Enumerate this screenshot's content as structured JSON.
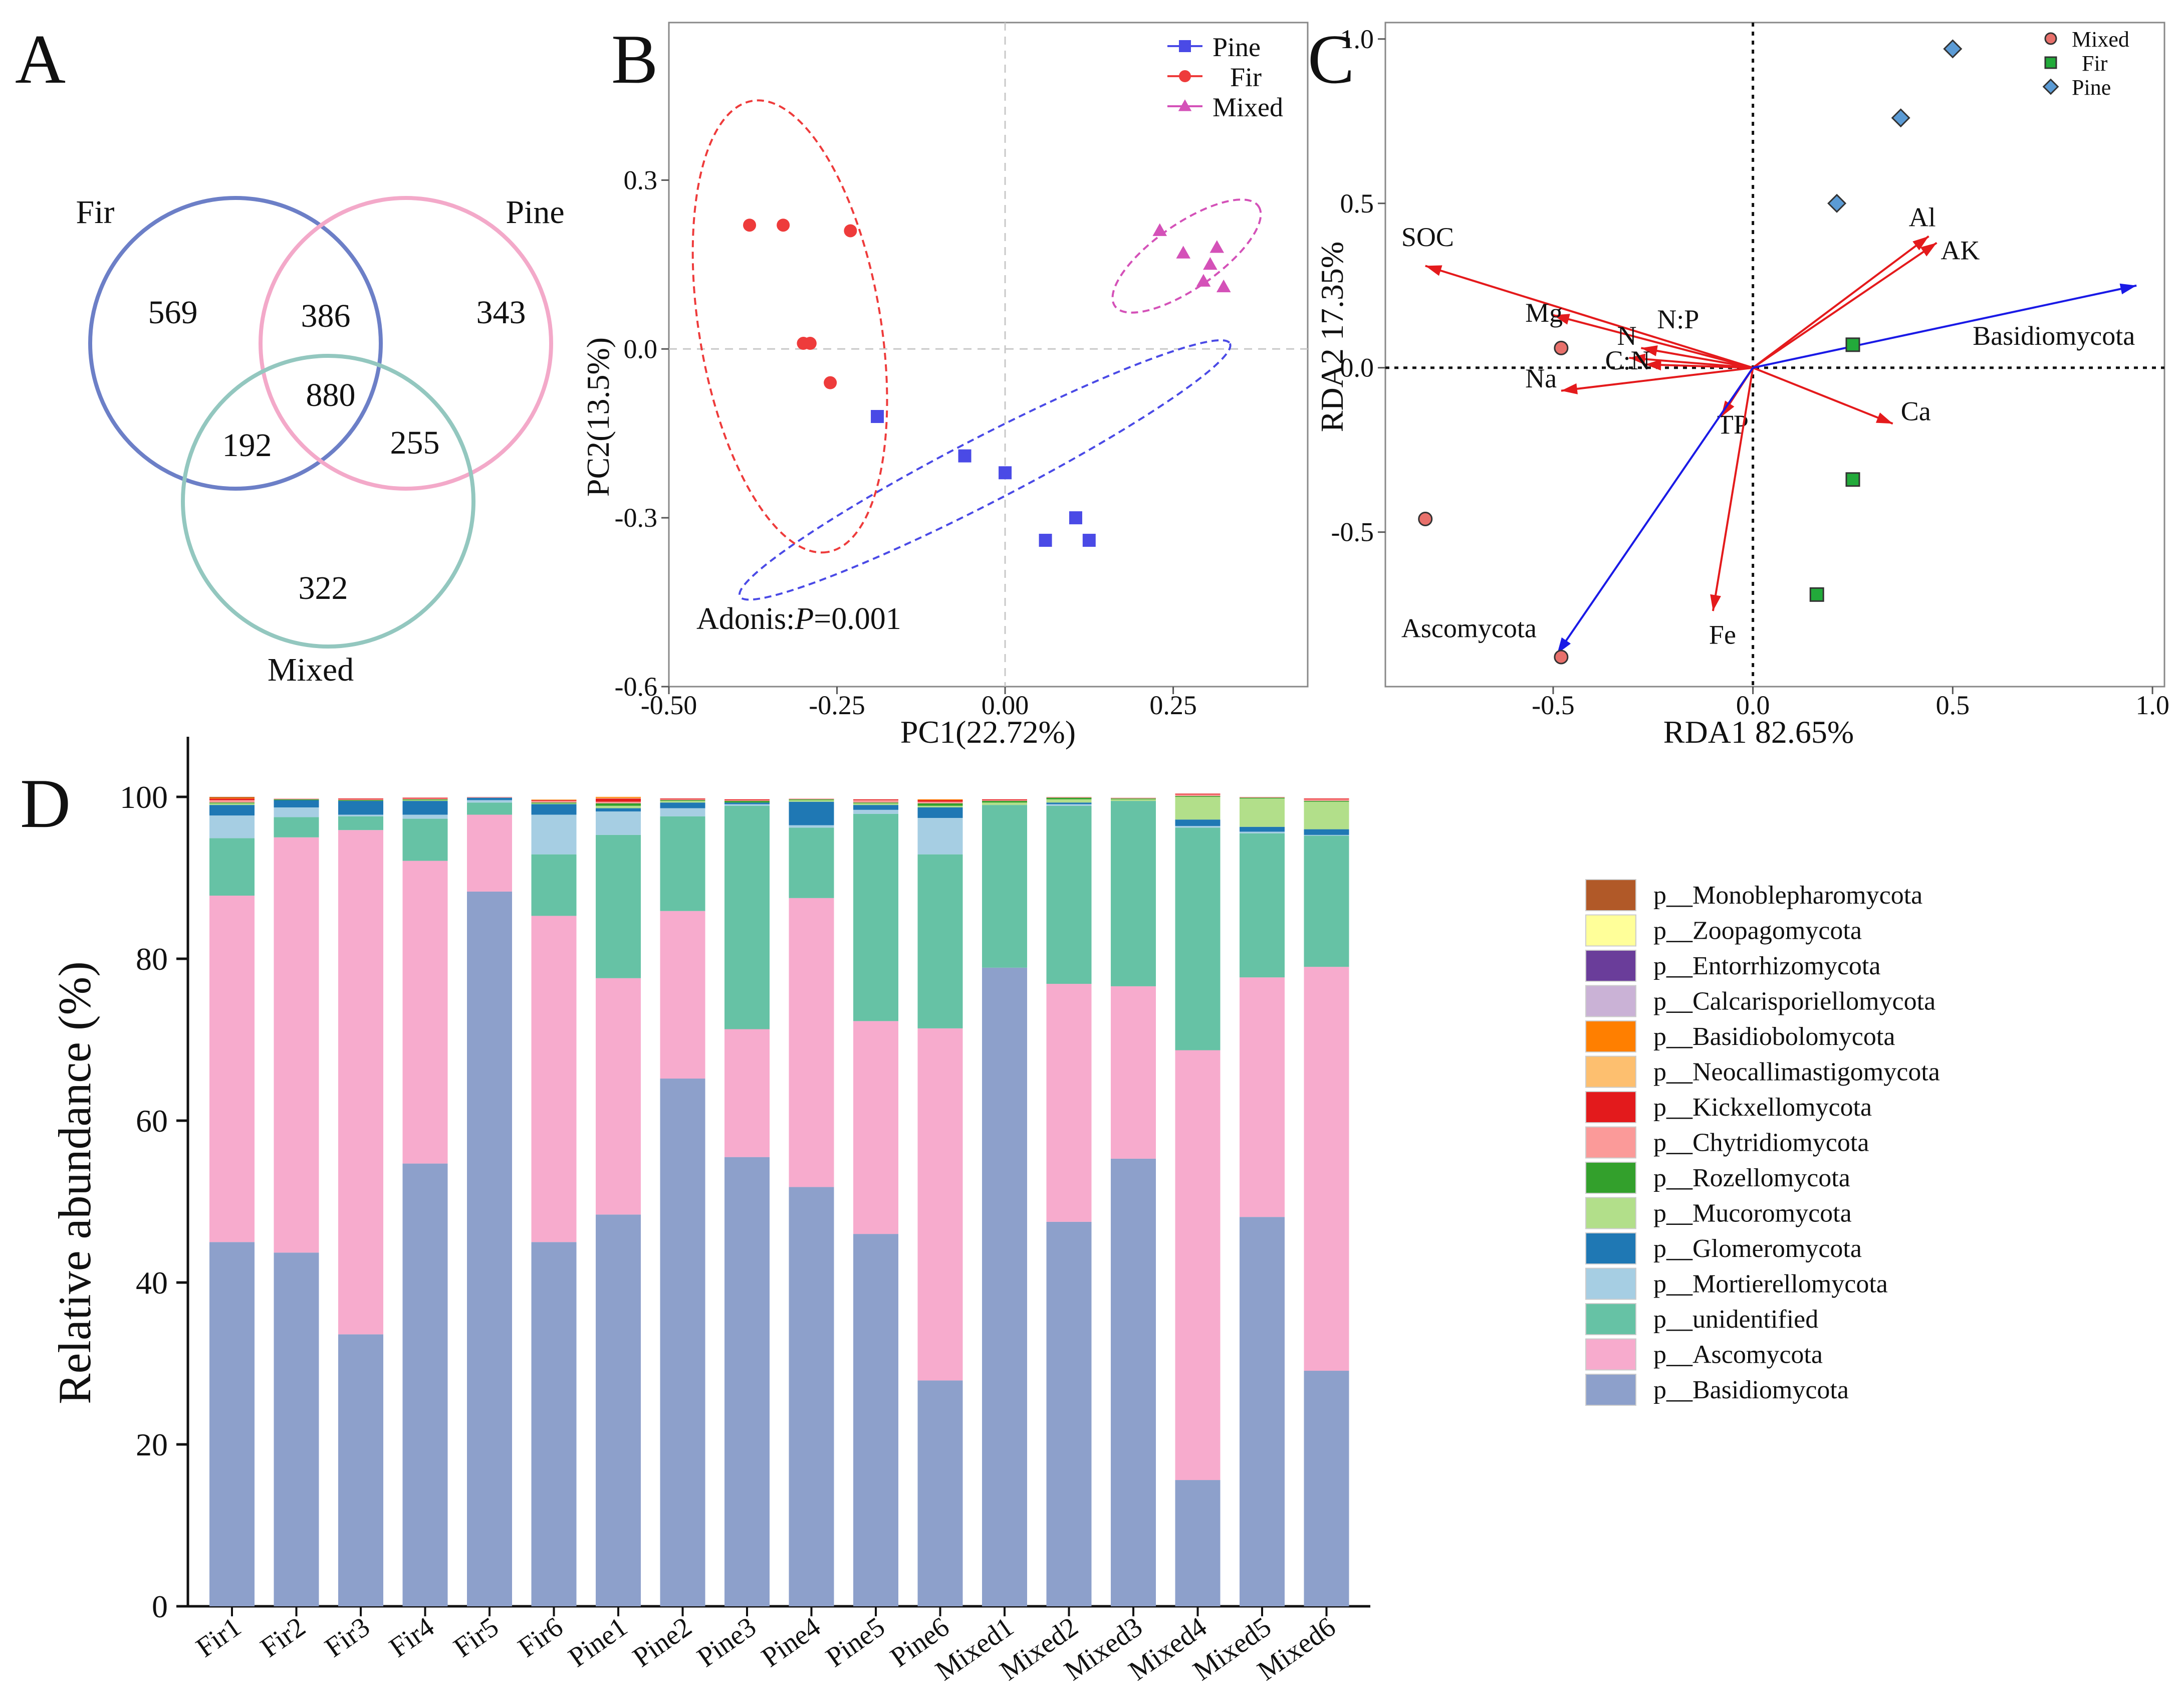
{
  "colors": {
    "fir_circle": "#6c7fc7",
    "pine_circle": "#f3a9c9",
    "mixed_circle": "#93c7bf",
    "pine_point": "#4a4ae6",
    "fir_point": "#ee3b3b",
    "mixed_point": "#d451b8",
    "env_arrow": "#e41a1c",
    "phylum_arrow": "#1a1ae6",
    "blue_label": "#5b9bd5",
    "highlight_label": "#e84a1d"
  },
  "panels": {
    "a": "A",
    "b": "B",
    "c": "C",
    "d": "D"
  },
  "venn": {
    "sets": [
      {
        "label": "Fir",
        "color": "#6c7fc7"
      },
      {
        "label": "Pine",
        "color": "#f3a9c9"
      },
      {
        "label": "Mixed",
        "color": "#93c7bf"
      }
    ],
    "counts": {
      "fir_only": "569",
      "fir_pine": "386",
      "pine_only": "343",
      "all_three": "880",
      "fir_mixed": "192",
      "pine_mixed": "255",
      "mixed_only": "322"
    }
  },
  "chart_data": [
    {
      "id": "B",
      "type": "scatter",
      "xlabel": "PC1(22.72%)",
      "ylabel": "PC2(13.5%)",
      "xlim": [
        -0.5,
        0.45
      ],
      "ylim": [
        -0.6,
        0.58
      ],
      "x_ticks": [
        -0.5,
        -0.25,
        0,
        0.25
      ],
      "x_tick_labels": [
        "-0.50",
        "-0.25",
        "0.00",
        "0.25"
      ],
      "y_ticks": [
        -0.6,
        -0.3,
        0,
        0.3
      ],
      "y_tick_labels": [
        "-0.6",
        "-0.3",
        "0.0",
        "0.3"
      ],
      "annotation": {
        "prefix": "Adonis:",
        "var": "P",
        "value": "=0.001"
      },
      "series": [
        {
          "name": "Pine",
          "marker": "square",
          "color": "#4a4ae6",
          "points": [
            [
              -0.19,
              -0.12
            ],
            [
              -0.06,
              -0.19
            ],
            [
              0,
              -0.22
            ],
            [
              0.06,
              -0.34
            ],
            [
              0.105,
              -0.3
            ],
            [
              0.125,
              -0.34
            ]
          ],
          "ellipse": {
            "cx": -0.03,
            "cy": -0.215,
            "rx": 0.41,
            "ry": 0.048,
            "angle_deg": 27.3
          }
        },
        {
          "name": "Fir",
          "marker": "circle",
          "color": "#ee3b3b",
          "points": [
            [
              -0.38,
              0.22
            ],
            [
              -0.33,
              0.22
            ],
            [
              -0.23,
              0.21
            ],
            [
              -0.3,
              0.01
            ],
            [
              -0.29,
              0.01
            ],
            [
              -0.26,
              -0.06
            ]
          ],
          "ellipse": {
            "cx": -0.32,
            "cy": 0.04,
            "rx": 0.34,
            "ry": 0.135,
            "angle_deg": -80.5
          }
        },
        {
          "name": "Mixed",
          "marker": "triangle",
          "color": "#d451b8",
          "points": [
            [
              0.23,
              0.21
            ],
            [
              0.265,
              0.17
            ],
            [
              0.295,
              0.12
            ],
            [
              0.305,
              0.15
            ],
            [
              0.315,
              0.18
            ],
            [
              0.325,
              0.11
            ]
          ],
          "ellipse": {
            "cx": 0.27,
            "cy": 0.165,
            "rx": 0.13,
            "ry": 0.048,
            "angle_deg": 34.8
          }
        }
      ]
    },
    {
      "id": "C",
      "type": "scatter",
      "xlabel": "RDA1 82.65%",
      "ylabel": "RDA2 17.35%",
      "xlim": [
        -0.92,
        1.03
      ],
      "ylim": [
        -0.97,
        1.05
      ],
      "x_ticks": [
        -0.5,
        0,
        0.5,
        1
      ],
      "x_tick_labels": [
        "-0.5",
        "0.0",
        "0.5",
        "1.0"
      ],
      "y_ticks": [
        -0.5,
        0,
        0.5,
        1
      ],
      "y_tick_labels": [
        "-0.5",
        "0.0",
        "0.5",
        "1.0"
      ],
      "series": [
        {
          "name": "Mixed",
          "marker": "circle",
          "color": "#e8706b",
          "points": [
            [
              -0.48,
              0.06
            ],
            [
              -0.82,
              -0.46
            ],
            [
              -0.48,
              -0.88
            ]
          ]
        },
        {
          "name": "Fir",
          "marker": "square",
          "color": "#22aa3a",
          "points": [
            [
              0.25,
              0.07
            ],
            [
              0.25,
              -0.34
            ],
            [
              0.16,
              -0.69
            ]
          ]
        },
        {
          "name": "Pine",
          "marker": "diamond",
          "color": "#5b9bd5",
          "points": [
            [
              0.5,
              0.97
            ],
            [
              0.37,
              0.76
            ],
            [
              0.21,
              0.5
            ]
          ]
        }
      ],
      "env_vectors": [
        {
          "label": "SOC",
          "x": -0.82,
          "y": 0.31,
          "color": "#e41a1c",
          "label_color": "#111111"
        },
        {
          "label": "Mg",
          "x": -0.5,
          "y": 0.16,
          "color": "#e41a1c",
          "label_color": "#111111"
        },
        {
          "label": "N",
          "x": -0.31,
          "y": 0.03,
          "color": "#e41a1c",
          "label_color": "#111111"
        },
        {
          "label": "N:P",
          "x": -0.28,
          "y": 0.06,
          "color": "#e41a1c",
          "label_color": "#5b9bd5"
        },
        {
          "label": "C:N",
          "x": -0.27,
          "y": 0.01,
          "color": "#e41a1c",
          "label_color": "#5b9bd5"
        },
        {
          "label": "Na",
          "x": -0.48,
          "y": -0.07,
          "color": "#e41a1c",
          "label_color": "#111111"
        },
        {
          "label": "Al",
          "x": 0.44,
          "y": 0.4,
          "color": "#e41a1c",
          "label_color": "#111111"
        },
        {
          "label": "AK",
          "x": 0.46,
          "y": 0.38,
          "color": "#e41a1c",
          "label_color": "#111111"
        },
        {
          "label": "Ca",
          "x": 0.35,
          "y": -0.17,
          "color": "#e41a1c",
          "label_color": "#111111"
        },
        {
          "label": "TP",
          "x": -0.08,
          "y": -0.15,
          "color": "#e41a1c",
          "label_color": "#5b9bd5"
        },
        {
          "label": "Fe",
          "x": -0.1,
          "y": -0.74,
          "color": "#e41a1c",
          "label_color": "#5b9bd5"
        }
      ],
      "phylum_vectors": [
        {
          "label": "Basidiomycota",
          "x": 0.96,
          "y": 0.25,
          "color": "#1a1ae6"
        },
        {
          "label": "Ascomycota",
          "x": -0.49,
          "y": -0.87,
          "color": "#1a1ae6"
        }
      ]
    },
    {
      "id": "D",
      "type": "bar",
      "stacked": true,
      "ylabel": "Relative abundance (%)",
      "ylim": [
        0,
        100
      ],
      "y_ticks": [
        0,
        20,
        40,
        60,
        80,
        100
      ],
      "y_tick_labels": [
        "0",
        "20",
        "40",
        "60",
        "80",
        "100"
      ],
      "categories": [
        "Fir1",
        "Fir2",
        "Fir3",
        "Fir4",
        "Fir5",
        "Fir6",
        "Pine1",
        "Pine2",
        "Pine3",
        "Pine4",
        "Pine5",
        "Pine6",
        "Mixed1",
        "Mixed2",
        "Mixed3",
        "Mixed4",
        "Mixed5",
        "Mixed6"
      ],
      "series": [
        {
          "name": "p__Basidiomycota",
          "color": "#8da0cb",
          "values": [
            45,
            43.7,
            33.6,
            54.7,
            88.3,
            45,
            48.4,
            65.2,
            55.5,
            51.8,
            46,
            27.9,
            78.9,
            47.5,
            55.3,
            15.6,
            48.1,
            29.1
          ]
        },
        {
          "name": "p__Ascomycota",
          "color": "#f7abcd",
          "values": [
            42.8,
            51.3,
            62.3,
            37.4,
            9.5,
            40.3,
            29.2,
            20.7,
            15.8,
            35.7,
            26.3,
            43.5,
            0,
            29.4,
            21.3,
            53.1,
            29.6,
            49.9
          ]
        },
        {
          "name": "p__unidentified",
          "color": "#66c2a5",
          "values": [
            7.1,
            2.5,
            1.7,
            5.2,
            1.5,
            7.6,
            17.7,
            11.7,
            27.6,
            8.7,
            25.6,
            21.5,
            20.1,
            22,
            22.9,
            27.5,
            17.8,
            16.2
          ]
        },
        {
          "name": "p__Mortierellomycota",
          "color": "#a6cee3",
          "values": [
            2.8,
            1.2,
            0.2,
            0.5,
            0.3,
            4.9,
            2.9,
            1,
            0.2,
            0.3,
            0.5,
            4.5,
            0,
            0.2,
            0,
            0.2,
            0.2,
            0.1
          ]
        },
        {
          "name": "p__Glomeromycota",
          "color": "#1f78b4",
          "values": [
            1.3,
            0.9,
            1.7,
            1.7,
            0.3,
            1.3,
            0.4,
            0.7,
            0.2,
            2.9,
            0.6,
            1.3,
            0,
            0.2,
            0,
            0.8,
            0.6,
            0.7
          ]
        },
        {
          "name": "p__Mucoromycota",
          "color": "#b2df8a",
          "values": [
            0.2,
            0,
            0,
            0.1,
            0,
            0.1,
            0.3,
            0.2,
            0,
            0.2,
            0.2,
            0.2,
            0.3,
            0.4,
            0.2,
            2.8,
            3.5,
            3.4
          ]
        },
        {
          "name": "p__Rozellomycota",
          "color": "#33a02c",
          "values": [
            0.1,
            0.1,
            0.1,
            0.1,
            0,
            0.1,
            0.3,
            0.1,
            0.2,
            0.1,
            0.1,
            0.3,
            0.2,
            0.2,
            0.1,
            0.1,
            0.1,
            0.1
          ]
        },
        {
          "name": "p__Chytridiomycota",
          "color": "#fb9a99",
          "values": [
            0.3,
            0.1,
            0.1,
            0.1,
            0.1,
            0.2,
            0.2,
            0.1,
            0.1,
            0.1,
            0.3,
            0.2,
            0.1,
            0.1,
            0.1,
            0.2,
            0.1,
            0.2
          ]
        },
        {
          "name": "p__Kickxellomycota",
          "color": "#e31a1c",
          "values": [
            0.2,
            0,
            0.1,
            0.1,
            0,
            0.1,
            0.4,
            0.1,
            0.1,
            0,
            0.1,
            0.2,
            0.1,
            0,
            0,
            0.1,
            0,
            0.1
          ]
        },
        {
          "name": "p__Neocallimastigomycota",
          "color": "#fdbf6f",
          "values": [
            0,
            0,
            0,
            0,
            0,
            0.1,
            0.1,
            0,
            0,
            0,
            0,
            0,
            0,
            0,
            0,
            0,
            0,
            0
          ]
        },
        {
          "name": "p__Basidiobolomycota",
          "color": "#ff7f00",
          "values": [
            0.1,
            0,
            0,
            0,
            0,
            0,
            0.1,
            0,
            0,
            0,
            0,
            0.1,
            0,
            0,
            0,
            0,
            0,
            0
          ]
        },
        {
          "name": "p__Calcarisporiellomycota",
          "color": "#cab2d6",
          "values": [
            0,
            0,
            0,
            0,
            0,
            0,
            0,
            0,
            0,
            0,
            0,
            0,
            0,
            0,
            0,
            0,
            0,
            0
          ]
        },
        {
          "name": "p__Entorrhizomycota",
          "color": "#6a3d9a",
          "values": [
            0,
            0,
            0,
            0,
            0,
            0,
            0,
            0,
            0,
            0,
            0,
            0,
            0,
            0,
            0,
            0,
            0,
            0
          ]
        },
        {
          "name": "p__Zoopagomycota",
          "color": "#ffff99",
          "values": [
            0,
            0,
            0,
            0,
            0,
            0,
            0,
            0,
            0,
            0,
            0,
            0,
            0,
            0,
            0,
            0,
            0,
            0
          ]
        },
        {
          "name": "p__Monoblepharomycota",
          "color": "#b15928",
          "values": [
            0.1,
            0,
            0,
            0,
            0,
            0,
            0,
            0,
            0,
            0,
            0,
            0,
            0,
            0,
            0,
            0,
            0,
            0
          ]
        }
      ],
      "legend": [
        {
          "name": "p__Monoblepharomycota",
          "color": "#b15928",
          "label_color": "#111111"
        },
        {
          "name": "p__Zoopagomycota",
          "color": "#ffff99",
          "label_color": "#111111"
        },
        {
          "name": "p__Entorrhizomycota",
          "color": "#6a3d9a",
          "label_color": "#111111"
        },
        {
          "name": "p__Calcarisporiellomycota",
          "color": "#cab2d6",
          "label_color": "#111111"
        },
        {
          "name": "p__Basidiobolomycota",
          "color": "#ff7f00",
          "label_color": "#111111"
        },
        {
          "name": "p__Neocallimastigomycota",
          "color": "#fdbf6f",
          "label_color": "#111111"
        },
        {
          "name": "p__Kickxellomycota",
          "color": "#e31a1c",
          "label_color": "#111111"
        },
        {
          "name": "p__Chytridiomycota",
          "color": "#fb9a99",
          "label_color": "#111111"
        },
        {
          "name": "p__Rozellomycota",
          "color": "#33a02c",
          "label_color": "#e84a1d"
        },
        {
          "name": "p__Mucoromycota",
          "color": "#b2df8a",
          "label_color": "#e84a1d"
        },
        {
          "name": "p__Glomeromycota",
          "color": "#1f78b4",
          "label_color": "#e84a1d"
        },
        {
          "name": "p__Mortierellomycota",
          "color": "#a6cee3",
          "label_color": "#111111"
        },
        {
          "name": "p__unidentified",
          "color": "#66c2a5",
          "label_color": "#111111"
        },
        {
          "name": "p__Ascomycota",
          "color": "#f7abcd",
          "label_color": "#111111"
        },
        {
          "name": "p__Basidiomycota",
          "color": "#8da0cb",
          "label_color": "#111111"
        }
      ]
    }
  ]
}
